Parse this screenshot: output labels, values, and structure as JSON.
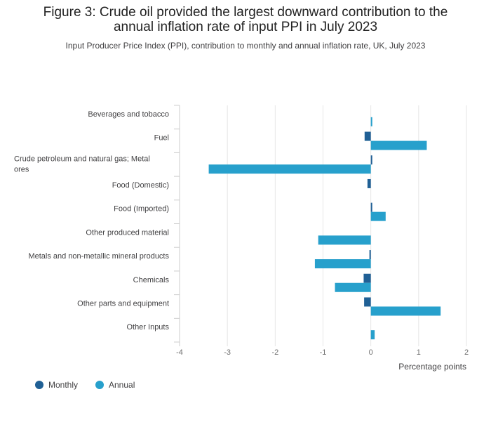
{
  "title_line1": "Figure 3: Crude oil provided the largest downward contribution to the",
  "title_line2": "annual inflation rate of input PPI in July 2023",
  "subtitle": "Input Producer Price Index (PPI), contribution to monthly and annual inflation rate, UK, July 2023",
  "legend": {
    "monthly": {
      "label": "Monthly",
      "color": "#206095"
    },
    "annual": {
      "label": "Annual",
      "color": "#27a0cc"
    }
  },
  "chart_data": {
    "type": "bar",
    "orientation": "horizontal",
    "xlabel": "Percentage points",
    "xlim": [
      -4,
      2
    ],
    "xticks": [
      "-4",
      "-3",
      "-2",
      "-1",
      "0",
      "1",
      "2"
    ],
    "grid": true,
    "legend_position": "bottom-left",
    "categories": [
      [
        "Beverages and tobacco"
      ],
      [
        "Fuel"
      ],
      [
        "Crude petroleum and natural gas; Metal",
        "ores"
      ],
      [
        "Food (Domestic)"
      ],
      [
        "Food (Imported)"
      ],
      [
        "Other produced material"
      ],
      [
        "Metals and non-metallic mineral products"
      ],
      [
        "Chemicals"
      ],
      [
        "Other parts and equipment"
      ],
      [
        "Other Inputs"
      ]
    ],
    "series": [
      {
        "name": "Monthly",
        "color": "#206095",
        "values": [
          0.0,
          -0.13,
          0.03,
          -0.07,
          0.01,
          0.0,
          -0.02,
          -0.15,
          -0.14,
          0.0
        ]
      },
      {
        "name": "Annual",
        "color": "#27a0cc",
        "values": [
          0.03,
          1.17,
          -3.39,
          0.0,
          0.31,
          -1.1,
          -1.17,
          -0.75,
          1.46,
          0.08
        ]
      }
    ]
  }
}
